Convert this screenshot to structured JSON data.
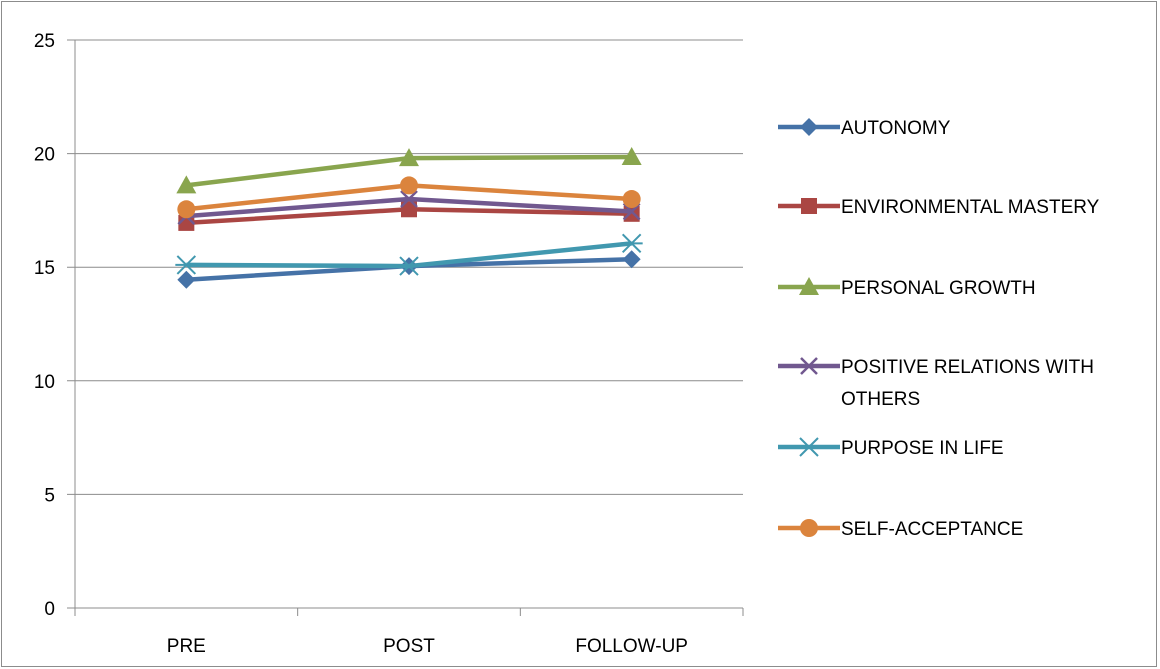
{
  "chart_data": {
    "type": "line",
    "title": "",
    "xlabel": "",
    "ylabel": "",
    "categories": [
      "PRE",
      "POST",
      "FOLLOW-UP"
    ],
    "ylim": [
      0,
      25
    ],
    "yticks": [
      0,
      5,
      10,
      15,
      20,
      25
    ],
    "grid": true,
    "legend_position": "right",
    "series": [
      {
        "name": "AUTONOMY",
        "legend_lines": [
          "AUTONOMY"
        ],
        "values": [
          14.45,
          15.05,
          15.35
        ],
        "color": "#4572a7",
        "marker": "diamond"
      },
      {
        "name": "ENVIRONMENTAL MASTERY",
        "legend_lines": [
          "ENVIRONMENTAL MASTERY"
        ],
        "values": [
          16.95,
          17.55,
          17.35
        ],
        "color": "#aa4643",
        "marker": "square"
      },
      {
        "name": "PERSONAL GROWTH",
        "legend_lines": [
          "PERSONAL GROWTH"
        ],
        "values": [
          18.6,
          19.8,
          19.85
        ],
        "color": "#89a54e",
        "marker": "triangle"
      },
      {
        "name": "POSITIVE RELATIONS WITH OTHERS",
        "legend_lines": [
          "POSITIVE RELATIONS WITH",
          "OTHERS"
        ],
        "values": [
          17.25,
          18.0,
          17.45
        ],
        "color": "#71588f",
        "marker": "x"
      },
      {
        "name": "PURPOSE IN LIFE",
        "legend_lines": [
          "PURPOSE IN LIFE"
        ],
        "values": [
          15.1,
          15.05,
          16.05
        ],
        "color": "#4198af",
        "marker": "star"
      },
      {
        "name": "SELF-ACCEPTANCE",
        "legend_lines": [
          "SELF-ACCEPTANCE"
        ],
        "values": [
          17.55,
          18.6,
          18.0
        ],
        "color": "#db843d",
        "marker": "circle"
      }
    ]
  }
}
